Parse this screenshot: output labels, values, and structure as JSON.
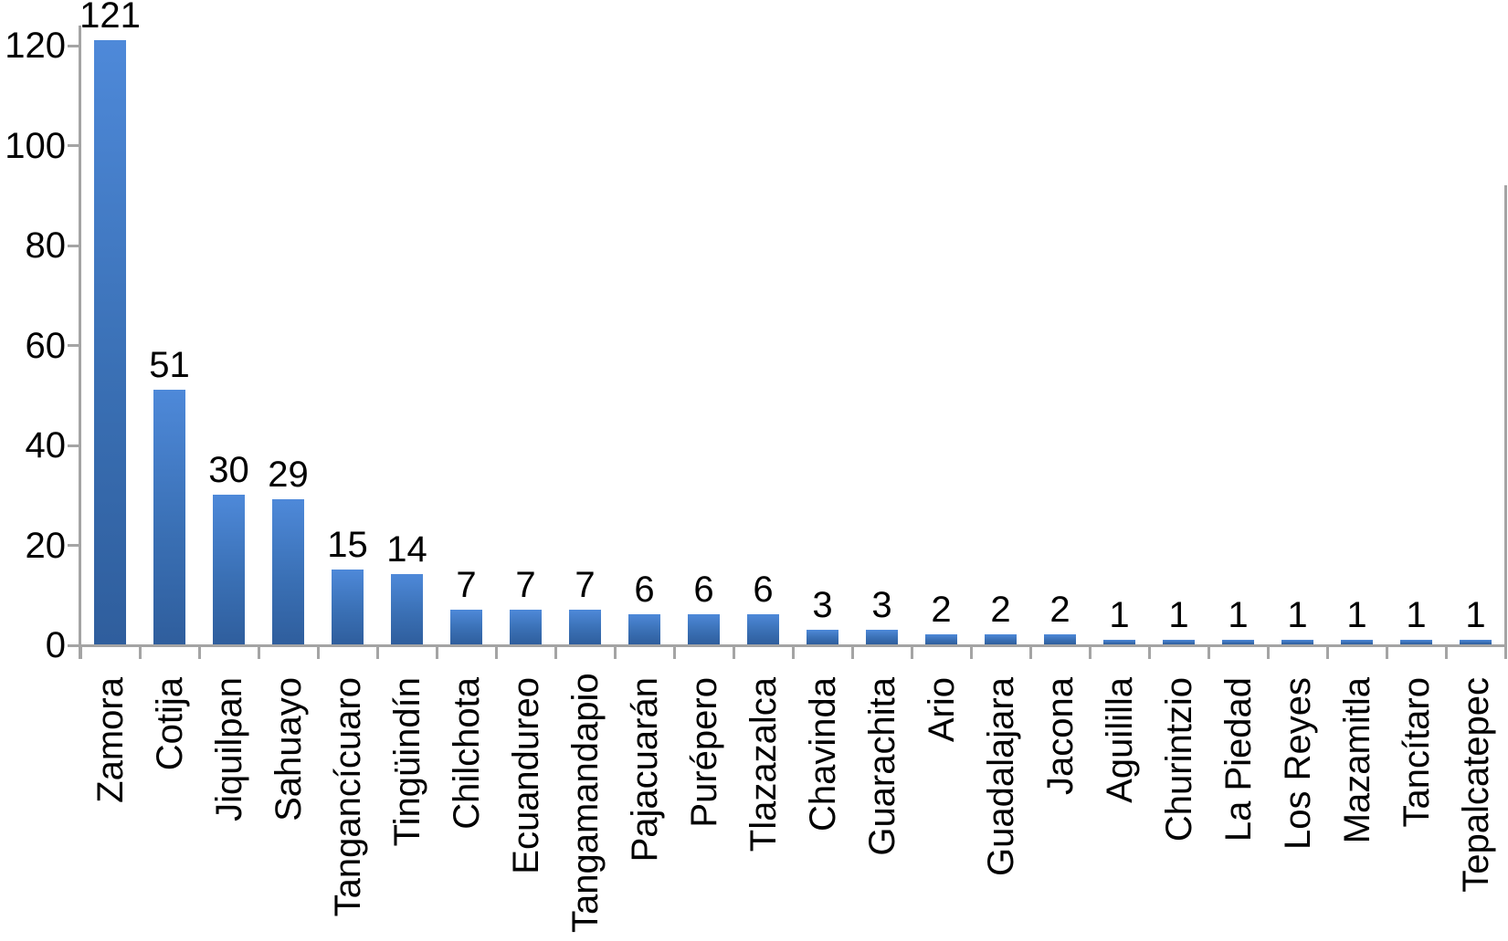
{
  "chart_data": {
    "type": "bar",
    "title": "",
    "xlabel": "",
    "ylabel": "",
    "categories": [
      "Zamora",
      "Cotija",
      "Jiquilpan",
      "Sahuayo",
      "Tangancícuaro",
      "Tingüindín",
      "Chilchota",
      "Ecuandureo",
      "Tangamandapio",
      "Pajacuarán",
      "Purépero",
      "Tlazazalca",
      "Chavinda",
      "Guarachita",
      "Ario",
      "Guadalajara",
      "Jacona",
      "Aguililla",
      "Churintzio",
      "La Piedad",
      "Los Reyes",
      "Mazamitla",
      "Tancítaro",
      "Tepalcatepec"
    ],
    "values": [
      121,
      51,
      30,
      29,
      15,
      14,
      7,
      7,
      7,
      6,
      6,
      6,
      3,
      3,
      2,
      2,
      2,
      1,
      1,
      1,
      1,
      1,
      1,
      1
    ],
    "data_labels": [
      121,
      51,
      30,
      29,
      15,
      14,
      7,
      7,
      7,
      6,
      6,
      6,
      3,
      3,
      2,
      2,
      2,
      1,
      1,
      1,
      1,
      1,
      1,
      1
    ],
    "yticks": [
      0,
      20,
      40,
      60,
      80,
      100,
      120
    ],
    "ylim": [
      0,
      124
    ],
    "grid": false,
    "legend": null,
    "category_label_rotation_deg": -90,
    "style": {
      "bar_gradient_top": "#4e89d9",
      "bar_gradient_bottom": "#2f5e9d",
      "axis_color": "#a4a4a4",
      "text_color": "#000000",
      "background": "#ffffff"
    }
  }
}
